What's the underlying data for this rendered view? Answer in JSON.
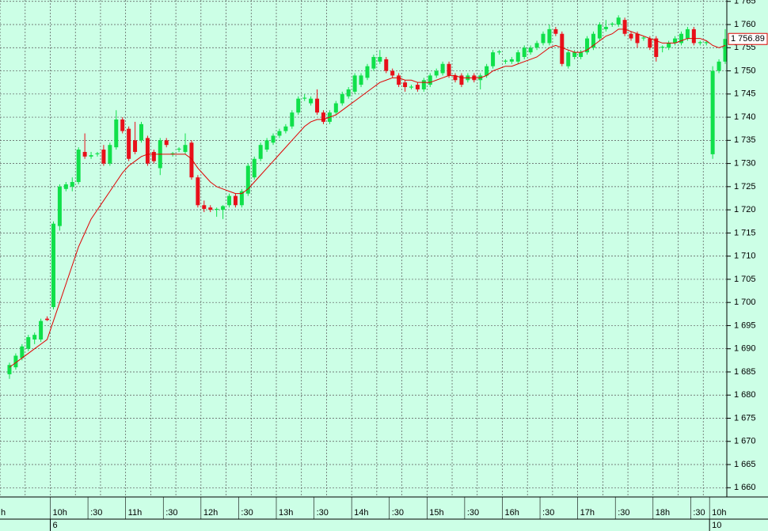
{
  "chart_data": {
    "type": "candlestick",
    "cut_label": "h",
    "categories": [
      null,
      null,
      null,
      null,
      null,
      null,
      null,
      "10h",
      null,
      null,
      null,
      null,
      null,
      ":30",
      null,
      null,
      null,
      null,
      null,
      "11h",
      null,
      null,
      null,
      null,
      null,
      ":30",
      null,
      null,
      null,
      null,
      null,
      "12h",
      null,
      null,
      null,
      null,
      null,
      ":30",
      null,
      null,
      null,
      null,
      null,
      "13h",
      null,
      null,
      null,
      null,
      null,
      ":30",
      null,
      null,
      null,
      null,
      null,
      "14h",
      null,
      null,
      null,
      null,
      null,
      ":30",
      null,
      null,
      null,
      null,
      null,
      "15h",
      null,
      null,
      null,
      null,
      null,
      ":30",
      null,
      null,
      null,
      null,
      null,
      "16h",
      null,
      null,
      null,
      null,
      null,
      ":30",
      null,
      null,
      null,
      null,
      null,
      "17h",
      null,
      null,
      null,
      null,
      null,
      ":30",
      null,
      null,
      null,
      null,
      null,
      "18h",
      null,
      null,
      null,
      null,
      null,
      ":30",
      null,
      null,
      "10h",
      null,
      null
    ],
    "dates": [
      null,
      null,
      null,
      null,
      null,
      null,
      null,
      "6",
      null,
      null,
      null,
      null,
      null,
      null,
      null,
      null,
      null,
      null,
      null,
      null,
      null,
      null,
      null,
      null,
      null,
      null,
      null,
      null,
      null,
      null,
      null,
      null,
      null,
      null,
      null,
      null,
      null,
      null,
      null,
      null,
      null,
      null,
      null,
      null,
      null,
      null,
      null,
      null,
      null,
      null,
      null,
      null,
      null,
      null,
      null,
      null,
      null,
      null,
      null,
      null,
      null,
      null,
      null,
      null,
      null,
      null,
      null,
      null,
      null,
      null,
      null,
      null,
      null,
      null,
      null,
      null,
      null,
      null,
      null,
      null,
      null,
      null,
      null,
      null,
      null,
      null,
      null,
      null,
      null,
      null,
      null,
      null,
      null,
      null,
      null,
      null,
      null,
      null,
      null,
      null,
      null,
      null,
      null,
      null,
      null,
      null,
      null,
      null,
      null,
      null,
      null,
      null,
      "10",
      null,
      null
    ],
    "open": [
      1684.5,
      1686,
      1688,
      1690,
      1692,
      1692,
      1696.5,
      1699,
      1716.5,
      1724.5,
      1725,
      1726,
      1732.5,
      1731.5,
      1732,
      1733,
      1730,
      1733.5,
      1739.5,
      1737.5,
      1735,
      1735,
      1735.5,
      1732.5,
      1729,
      1735,
      1732,
      1733,
      1732.5,
      1734.5,
      1727,
      1721,
      1720.5,
      1720,
      1720,
      1721,
      1723,
      1721,
      1723.5,
      1727,
      1731,
      1733,
      1734.5,
      1736,
      1737,
      1738,
      1741,
      1744,
      1743,
      1744,
      1741,
      1739,
      1741,
      1743,
      1744.5,
      1745.5,
      1747,
      1748.5,
      1750.5,
      1752,
      1752.5,
      1750,
      1749,
      1747.5,
      1746.5,
      1747,
      1746,
      1747,
      1749,
      1749.5,
      1751.5,
      1749,
      1749,
      1748,
      1749,
      1748,
      1749,
      1751,
      1754,
      1752,
      1752,
      1752,
      1753,
      1754,
      1755,
      1756,
      1756,
      1759,
      1758,
      1751,
      1753,
      1753,
      1754,
      1755,
      1757,
      1759,
      1760,
      1760,
      1761,
      1758,
      1758,
      1757,
      1757,
      1757,
      1755,
      1755,
      1756,
      1756,
      1757,
      1759,
      1756,
      1756,
      1732,
      1750,
      1752
    ],
    "high": [
      1687,
      1689,
      1691,
      1693,
      1693.5,
      1696.5,
      1697,
      1717.5,
      1725.5,
      1726,
      1727,
      1733.5,
      1736.5,
      1732.5,
      1732.5,
      1734,
      1734.5,
      1741.5,
      1740,
      1738,
      1739,
      1739,
      1736,
      1733,
      1735.5,
      1735.5,
      1732.5,
      1733.5,
      1736.5,
      1735,
      1727.5,
      1722,
      1721,
      1720.5,
      1721,
      1723.5,
      1723.5,
      1724.5,
      1730,
      1731.5,
      1734.5,
      1735.5,
      1736.5,
      1737.5,
      1738.5,
      1741.5,
      1744.5,
      1745,
      1744.5,
      1746,
      1741.5,
      1741.5,
      1743.5,
      1745.5,
      1746.5,
      1749.5,
      1749.5,
      1751.5,
      1753.5,
      1754.5,
      1753,
      1750.5,
      1749.5,
      1748,
      1747,
      1747.5,
      1748.5,
      1749.5,
      1750.5,
      1752,
      1752,
      1749.5,
      1749.5,
      1749.5,
      1749.5,
      1749.5,
      1751.5,
      1754.5,
      1754.5,
      1752.5,
      1753,
      1754.5,
      1755.5,
      1755.5,
      1756.5,
      1758.5,
      1760,
      1759.5,
      1758.5,
      1754.5,
      1754.5,
      1754.5,
      1757.5,
      1758.5,
      1760.5,
      1761,
      1760.5,
      1762,
      1761.5,
      1758.5,
      1758.5,
      1757.5,
      1757.5,
      1757.5,
      1755.5,
      1756.5,
      1757.5,
      1758.5,
      1759.5,
      1759.5,
      1756.5,
      1756.5,
      1751,
      1752.5,
      1759
    ],
    "low": [
      1683.5,
      1685.5,
      1687.5,
      1689.5,
      1691,
      1691.5,
      1696,
      1698.5,
      1715.5,
      1724,
      1724,
      1725.5,
      1731,
      1731,
      1731.5,
      1729.5,
      1729.5,
      1733,
      1736.5,
      1730.5,
      1732,
      1734.5,
      1729.5,
      1730,
      1727.5,
      1733.5,
      1731.5,
      1732.5,
      1732,
      1726.5,
      1720.5,
      1719.5,
      1719.5,
      1718.5,
      1718,
      1720.5,
      1720.5,
      1720.5,
      1723,
      1726.5,
      1730.5,
      1732.5,
      1734,
      1735.5,
      1736.5,
      1737.5,
      1740.5,
      1743.5,
      1742.5,
      1740.5,
      1738.5,
      1738.5,
      1740.5,
      1742.5,
      1744,
      1745,
      1746.5,
      1748,
      1750,
      1751.5,
      1749.5,
      1748.5,
      1746.5,
      1745.5,
      1746,
      1745.5,
      1745.5,
      1746.5,
      1748.5,
      1749,
      1748.5,
      1747.5,
      1746.5,
      1747.5,
      1747.5,
      1746,
      1748.5,
      1750.5,
      1753.5,
      1751.5,
      1751.5,
      1751.5,
      1752.5,
      1753.5,
      1754.5,
      1755.5,
      1755.5,
      1757.5,
      1751,
      1750.5,
      1752.5,
      1752.5,
      1753.5,
      1754.5,
      1756.5,
      1758.5,
      1759.5,
      1759.5,
      1757.5,
      1756.5,
      1755,
      1756.5,
      1754.5,
      1752,
      1754,
      1754.5,
      1755.5,
      1755.5,
      1756.5,
      1755.5,
      1755.5,
      1755.5,
      1731,
      1749.5,
      1751.5
    ],
    "close": [
      1686.5,
      1688.5,
      1690.5,
      1692.5,
      1693,
      1696,
      1696.2,
      1717,
      1725,
      1725.5,
      1726,
      1733,
      1731.5,
      1731.8,
      1732.2,
      1730,
      1734,
      1739.5,
      1737,
      1731,
      1732.5,
      1738.5,
      1730,
      1730.5,
      1735,
      1734,
      1732.2,
      1733.2,
      1734,
      1727,
      1721,
      1720.2,
      1720,
      1720.2,
      1720.8,
      1723,
      1721,
      1724,
      1729.5,
      1731,
      1734,
      1735,
      1736,
      1737,
      1738,
      1741,
      1744,
      1744.2,
      1744,
      1741,
      1739,
      1741,
      1743,
      1745,
      1746,
      1749,
      1749,
      1751,
      1753,
      1753,
      1750,
      1749,
      1747,
      1746.5,
      1746.6,
      1746,
      1748,
      1749,
      1750,
      1751.5,
      1749,
      1748,
      1747,
      1749,
      1748,
      1749,
      1751,
      1754,
      1754.2,
      1752.2,
      1752.5,
      1754,
      1755,
      1755,
      1756,
      1758,
      1759,
      1758,
      1751.5,
      1754,
      1754,
      1754,
      1757,
      1758,
      1760,
      1759.5,
      1760.2,
      1761.5,
      1758,
      1757,
      1756,
      1757.2,
      1755,
      1753,
      1755.2,
      1756,
      1757,
      1758,
      1759,
      1756,
      1756.2,
      1756.2,
      1750,
      1752,
      1756.89
    ],
    "up_color": "#10e04a",
    "down_color": "#e8101a",
    "ma": {
      "color": "#e00000",
      "values": [
        1686,
        1687,
        1688,
        1689,
        1690,
        1691,
        1692,
        1696,
        1700,
        1704,
        1708,
        1712,
        1715,
        1718,
        1720,
        1722,
        1724,
        1726,
        1728,
        1729.5,
        1730.5,
        1731.5,
        1732,
        1732,
        1732,
        1732,
        1732,
        1732,
        1732,
        1731,
        1729,
        1727.5,
        1726,
        1725,
        1724.5,
        1724,
        1723.5,
        1723.5,
        1724.5,
        1726,
        1727.5,
        1729,
        1730.5,
        1732,
        1733.5,
        1735,
        1736.5,
        1738,
        1739,
        1739.5,
        1739.5,
        1740,
        1740.5,
        1741.5,
        1742.5,
        1743.5,
        1744.5,
        1745.5,
        1746.5,
        1747.5,
        1748,
        1748.5,
        1748.5,
        1748,
        1748,
        1747.5,
        1747.5,
        1747.5,
        1748,
        1748.5,
        1749,
        1749,
        1748.5,
        1748.5,
        1748.5,
        1748.5,
        1749,
        1750,
        1750.5,
        1751,
        1751,
        1751.5,
        1752,
        1752.5,
        1753,
        1754,
        1755,
        1755.5,
        1755,
        1754.5,
        1754,
        1754,
        1754.5,
        1755.5,
        1756.5,
        1757.5,
        1758,
        1759,
        1759,
        1758.5,
        1758,
        1757.5,
        1757,
        1756.5,
        1756,
        1756,
        1756,
        1756.5,
        1757,
        1757,
        1757,
        1756.5,
        1755.5,
        1755,
        1755.5
      ]
    },
    "ylim": [
      1658,
      1765.3
    ],
    "yticks": [
      {
        "value": 1660,
        "label": "1 660"
      },
      {
        "value": 1665,
        "label": "1 665"
      },
      {
        "value": 1670,
        "label": "1 670"
      },
      {
        "value": 1675,
        "label": "1 675"
      },
      {
        "value": 1680,
        "label": "1 680"
      },
      {
        "value": 1685,
        "label": "1 685"
      },
      {
        "value": 1690,
        "label": "1 690"
      },
      {
        "value": 1695,
        "label": "1 695"
      },
      {
        "value": 1700,
        "label": "1 700"
      },
      {
        "value": 1705,
        "label": "1 705"
      },
      {
        "value": 1710,
        "label": "1 710"
      },
      {
        "value": 1715,
        "label": "1 715"
      },
      {
        "value": 1720,
        "label": "1 720"
      },
      {
        "value": 1725,
        "label": "1 725"
      },
      {
        "value": 1730,
        "label": "1 730"
      },
      {
        "value": 1735,
        "label": "1 735"
      },
      {
        "value": 1740,
        "label": "1 740"
      },
      {
        "value": 1745,
        "label": "1 745"
      },
      {
        "value": 1750,
        "label": "1 750"
      },
      {
        "value": 1755,
        "label": "1 755"
      },
      {
        "value": 1760,
        "label": "1 760"
      },
      {
        "value": 1765,
        "label": "1 765"
      }
    ],
    "last_label": "1 756.89",
    "grid": true
  }
}
